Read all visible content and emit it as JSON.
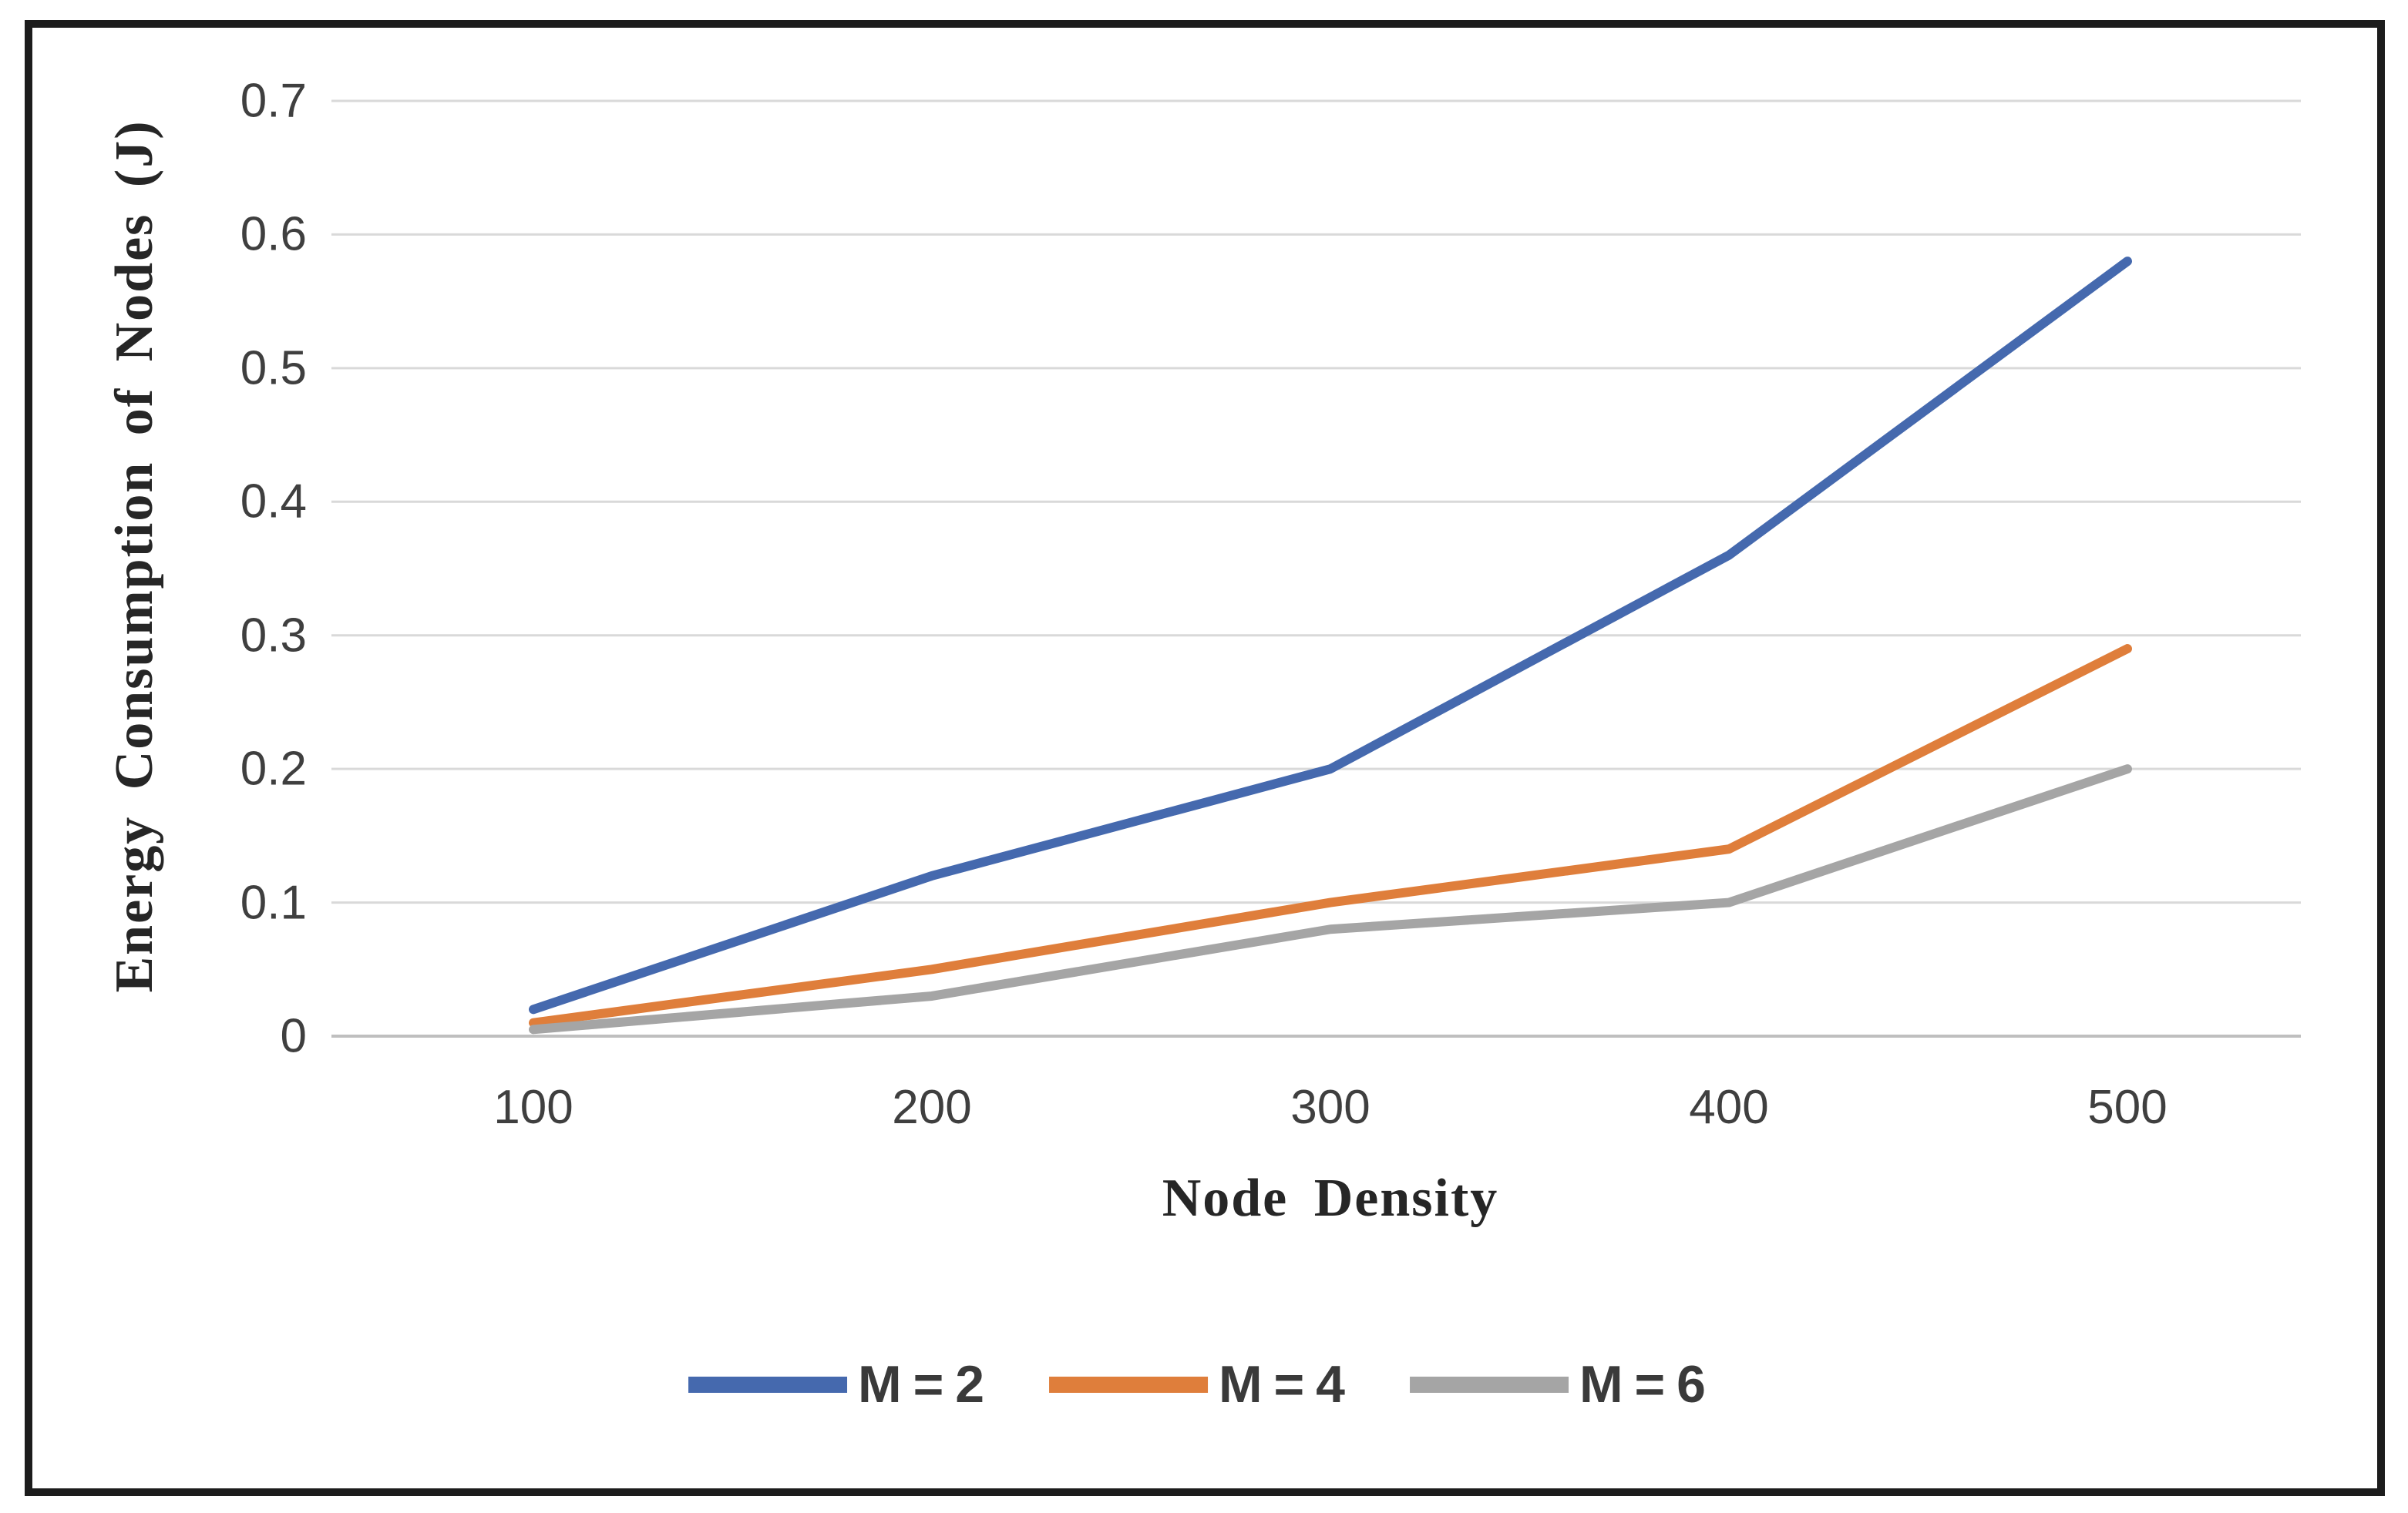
{
  "figure": {
    "background_color": "#ffffff",
    "border_color": "#1c1c1c",
    "gridline_color": "#d9d9d9",
    "axis_line_color": "#bfbfbf",
    "tick_label_color": "#3f3f3f"
  },
  "chart_data": {
    "type": "line",
    "title": "",
    "xlabel": "Node Density",
    "ylabel": "Energy Consumption of Nodes (J)",
    "categories": [
      100,
      200,
      300,
      400,
      500
    ],
    "x_tick_labels": [
      "100",
      "200",
      "300",
      "400",
      "500"
    ],
    "y_tick_labels": [
      "0",
      "0.1",
      "0.2",
      "0.3",
      "0.4",
      "0.5",
      "0.6",
      "0.7"
    ],
    "ylim": [
      0,
      0.7
    ],
    "y_tick_step": 0.1,
    "grid": "horizontal",
    "legend_position": "bottom",
    "series": [
      {
        "name": "M = 2",
        "color": "#4569ae",
        "values": [
          0.02,
          0.12,
          0.2,
          0.36,
          0.58
        ]
      },
      {
        "name": "M = 4",
        "color": "#df7e3b",
        "values": [
          0.01,
          0.05,
          0.1,
          0.14,
          0.29
        ]
      },
      {
        "name": "M = 6",
        "color": "#a5a5a5",
        "values": [
          0.005,
          0.03,
          0.08,
          0.1,
          0.2
        ]
      }
    ]
  }
}
